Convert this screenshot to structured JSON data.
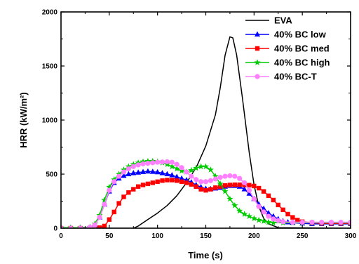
{
  "chart_data": {
    "type": "line",
    "title": "",
    "xlabel": "Time (s)",
    "ylabel": "HRR (kW/m²)",
    "xlim": [
      0,
      300
    ],
    "ylim": [
      0,
      2000
    ],
    "xticks": [
      0,
      50,
      100,
      150,
      200,
      250,
      300
    ],
    "yticks": [
      0,
      500,
      1000,
      1500,
      2000
    ],
    "grid": false,
    "legend_position": "top-right",
    "series": [
      {
        "name": "EVA",
        "color": "#000000",
        "marker": "none",
        "points": [
          [
            0,
            0
          ],
          [
            75,
            0
          ],
          [
            80,
            20
          ],
          [
            90,
            80
          ],
          [
            100,
            140
          ],
          [
            110,
            210
          ],
          [
            120,
            300
          ],
          [
            130,
            420
          ],
          [
            140,
            560
          ],
          [
            150,
            760
          ],
          [
            160,
            1050
          ],
          [
            165,
            1300
          ],
          [
            170,
            1600
          ],
          [
            175,
            1770
          ],
          [
            178,
            1760
          ],
          [
            182,
            1600
          ],
          [
            188,
            1200
          ],
          [
            195,
            700
          ],
          [
            200,
            400
          ],
          [
            205,
            200
          ],
          [
            210,
            90
          ],
          [
            215,
            40
          ],
          [
            225,
            5
          ],
          [
            300,
            0
          ]
        ]
      },
      {
        "name": "40% BC low",
        "color": "#0000ff",
        "marker": "triangle",
        "points": [
          [
            0,
            5
          ],
          [
            10,
            5
          ],
          [
            20,
            5
          ],
          [
            30,
            10
          ],
          [
            35,
            30
          ],
          [
            40,
            100
          ],
          [
            45,
            220
          ],
          [
            50,
            340
          ],
          [
            55,
            420
          ],
          [
            60,
            460
          ],
          [
            65,
            485
          ],
          [
            70,
            500
          ],
          [
            75,
            510
          ],
          [
            80,
            515
          ],
          [
            85,
            520
          ],
          [
            90,
            525
          ],
          [
            95,
            522
          ],
          [
            100,
            518
          ],
          [
            105,
            510
          ],
          [
            110,
            500
          ],
          [
            115,
            490
          ],
          [
            120,
            475
          ],
          [
            125,
            460
          ],
          [
            130,
            445
          ],
          [
            135,
            425
          ],
          [
            140,
            400
          ],
          [
            145,
            380
          ],
          [
            150,
            365
          ],
          [
            155,
            362
          ],
          [
            160,
            368
          ],
          [
            165,
            375
          ],
          [
            170,
            385
          ],
          [
            175,
            392
          ],
          [
            180,
            392
          ],
          [
            185,
            385
          ],
          [
            190,
            360
          ],
          [
            195,
            320
          ],
          [
            200,
            270
          ],
          [
            205,
            220
          ],
          [
            210,
            180
          ],
          [
            215,
            140
          ],
          [
            220,
            110
          ],
          [
            225,
            85
          ],
          [
            230,
            65
          ],
          [
            235,
            55
          ],
          [
            240,
            50
          ],
          [
            250,
            45
          ],
          [
            260,
            40
          ],
          [
            270,
            40
          ],
          [
            280,
            40
          ],
          [
            290,
            40
          ],
          [
            300,
            40
          ]
        ]
      },
      {
        "name": "40% BC med",
        "color": "#ff0000",
        "marker": "square",
        "points": [
          [
            0,
            0
          ],
          [
            10,
            0
          ],
          [
            20,
            0
          ],
          [
            30,
            0
          ],
          [
            40,
            5
          ],
          [
            45,
            20
          ],
          [
            50,
            80
          ],
          [
            55,
            150
          ],
          [
            60,
            230
          ],
          [
            65,
            290
          ],
          [
            70,
            330
          ],
          [
            75,
            360
          ],
          [
            80,
            385
          ],
          [
            85,
            400
          ],
          [
            90,
            410
          ],
          [
            95,
            420
          ],
          [
            100,
            430
          ],
          [
            105,
            440
          ],
          [
            110,
            445
          ],
          [
            115,
            445
          ],
          [
            120,
            440
          ],
          [
            125,
            430
          ],
          [
            130,
            420
          ],
          [
            135,
            405
          ],
          [
            140,
            385
          ],
          [
            145,
            360
          ],
          [
            150,
            350
          ],
          [
            155,
            360
          ],
          [
            160,
            375
          ],
          [
            165,
            385
          ],
          [
            170,
            395
          ],
          [
            175,
            400
          ],
          [
            180,
            402
          ],
          [
            185,
            402
          ],
          [
            190,
            400
          ],
          [
            195,
            398
          ],
          [
            200,
            390
          ],
          [
            205,
            370
          ],
          [
            210,
            340
          ],
          [
            215,
            300
          ],
          [
            220,
            260
          ],
          [
            225,
            215
          ],
          [
            230,
            170
          ],
          [
            235,
            130
          ],
          [
            240,
            100
          ],
          [
            245,
            75
          ],
          [
            250,
            60
          ],
          [
            260,
            50
          ],
          [
            270,
            45
          ],
          [
            280,
            45
          ],
          [
            290,
            45
          ],
          [
            300,
            45
          ]
        ]
      },
      {
        "name": "40% BC high",
        "color": "#00cc00",
        "marker": "star",
        "points": [
          [
            0,
            5
          ],
          [
            10,
            5
          ],
          [
            20,
            5
          ],
          [
            30,
            10
          ],
          [
            35,
            40
          ],
          [
            40,
            120
          ],
          [
            45,
            260
          ],
          [
            50,
            380
          ],
          [
            55,
            450
          ],
          [
            60,
            500
          ],
          [
            65,
            540
          ],
          [
            70,
            570
          ],
          [
            75,
            590
          ],
          [
            80,
            605
          ],
          [
            85,
            615
          ],
          [
            90,
            620
          ],
          [
            95,
            620
          ],
          [
            100,
            615
          ],
          [
            105,
            605
          ],
          [
            110,
            590
          ],
          [
            115,
            570
          ],
          [
            120,
            550
          ],
          [
            125,
            530
          ],
          [
            130,
            520
          ],
          [
            135,
            535
          ],
          [
            140,
            555
          ],
          [
            145,
            570
          ],
          [
            150,
            570
          ],
          [
            155,
            540
          ],
          [
            160,
            480
          ],
          [
            165,
            410
          ],
          [
            170,
            340
          ],
          [
            175,
            270
          ],
          [
            180,
            210
          ],
          [
            185,
            160
          ],
          [
            190,
            130
          ],
          [
            195,
            110
          ],
          [
            200,
            90
          ],
          [
            205,
            75
          ],
          [
            210,
            65
          ],
          [
            215,
            55
          ],
          [
            220,
            50
          ],
          [
            230,
            50
          ],
          [
            240,
            50
          ],
          [
            250,
            50
          ],
          [
            260,
            50
          ],
          [
            270,
            50
          ],
          [
            280,
            50
          ],
          [
            290,
            50
          ],
          [
            300,
            50
          ]
        ]
      },
      {
        "name": "40% BC-T",
        "color": "#ff80ff",
        "marker": "circle",
        "points": [
          [
            0,
            0
          ],
          [
            10,
            0
          ],
          [
            20,
            0
          ],
          [
            30,
            10
          ],
          [
            35,
            30
          ],
          [
            40,
            100
          ],
          [
            45,
            220
          ],
          [
            50,
            350
          ],
          [
            55,
            430
          ],
          [
            60,
            480
          ],
          [
            65,
            520
          ],
          [
            70,
            550
          ],
          [
            75,
            570
          ],
          [
            80,
            585
          ],
          [
            85,
            595
          ],
          [
            90,
            600
          ],
          [
            95,
            605
          ],
          [
            100,
            610
          ],
          [
            105,
            612
          ],
          [
            110,
            615
          ],
          [
            115,
            610
          ],
          [
            120,
            590
          ],
          [
            125,
            560
          ],
          [
            130,
            520
          ],
          [
            135,
            480
          ],
          [
            140,
            450
          ],
          [
            145,
            430
          ],
          [
            150,
            430
          ],
          [
            155,
            440
          ],
          [
            160,
            455
          ],
          [
            165,
            470
          ],
          [
            170,
            480
          ],
          [
            175,
            485
          ],
          [
            180,
            480
          ],
          [
            185,
            460
          ],
          [
            190,
            420
          ],
          [
            195,
            350
          ],
          [
            200,
            270
          ],
          [
            205,
            200
          ],
          [
            210,
            150
          ],
          [
            215,
            110
          ],
          [
            220,
            85
          ],
          [
            225,
            70
          ],
          [
            230,
            60
          ],
          [
            240,
            55
          ],
          [
            250,
            55
          ],
          [
            260,
            55
          ],
          [
            270,
            55
          ],
          [
            280,
            55
          ],
          [
            290,
            55
          ],
          [
            300,
            55
          ]
        ]
      }
    ]
  }
}
